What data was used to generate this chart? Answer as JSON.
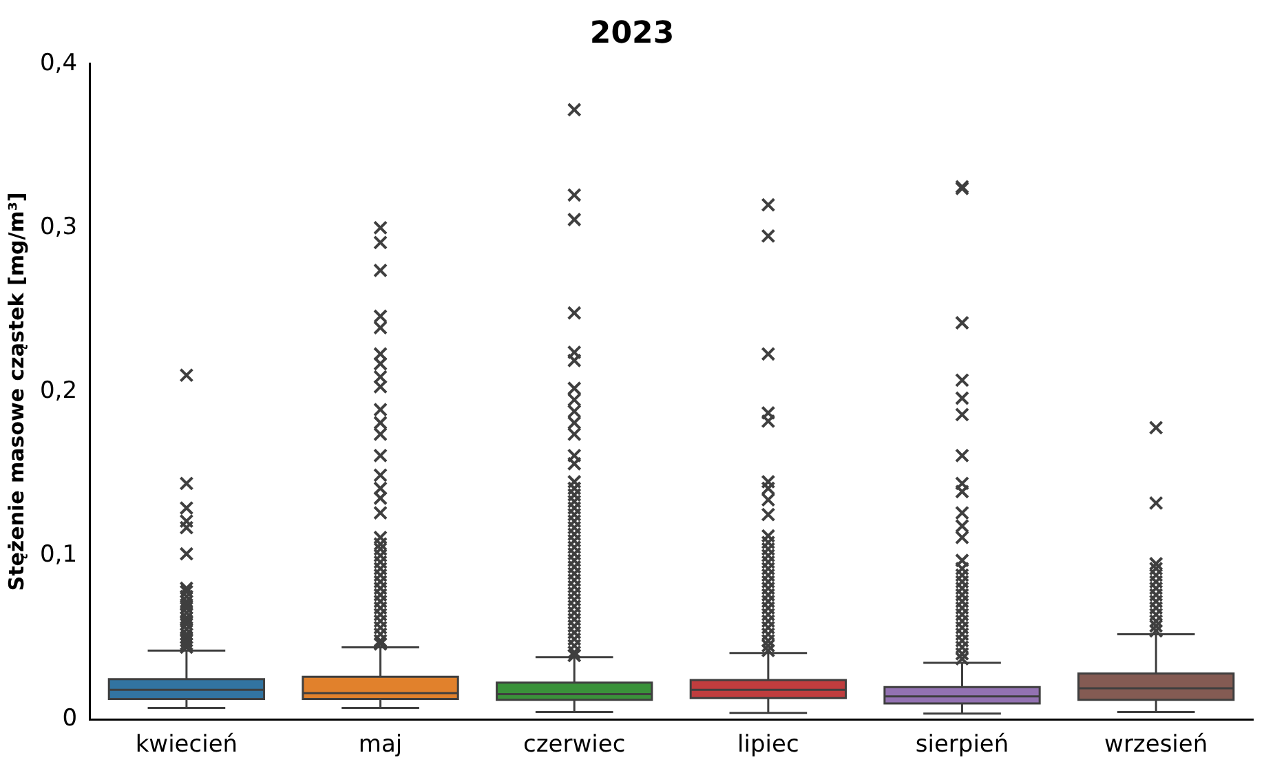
{
  "chart_data": {
    "type": "box",
    "title": "2023",
    "ylabel": "Stężenie masowe cząstek [mg/m³]",
    "categories": [
      "kwiecień",
      "maj",
      "czerwiec",
      "lipiec",
      "sierpień",
      "wrzesień"
    ],
    "colors": [
      "#3274a1",
      "#e1812c",
      "#3a923a",
      "#c03d3e",
      "#9372b2",
      "#845b53"
    ],
    "ylim": [
      0,
      0.4
    ],
    "yticks": [
      {
        "value": 0,
        "label": "0"
      },
      {
        "value": 0.1,
        "label": "0,1"
      },
      {
        "value": 0.2,
        "label": "0,2"
      },
      {
        "value": 0.3,
        "label": "0,3"
      },
      {
        "value": 0.4,
        "label": "0,4"
      }
    ],
    "grid": false,
    "legend": false,
    "marker": "cross",
    "boxes": [
      {
        "low": 0.007,
        "q1": 0.0125,
        "median": 0.018,
        "q3": 0.0245,
        "high": 0.042,
        "outliers": [
          0.21,
          0.144,
          0.129,
          0.121,
          0.117,
          0.101,
          0.08,
          0.078,
          0.075,
          0.072,
          0.07,
          0.068,
          0.065,
          0.062,
          0.06,
          0.058,
          0.055,
          0.052,
          0.05,
          0.048,
          0.046,
          0.044
        ]
      },
      {
        "low": 0.007,
        "q1": 0.0125,
        "median": 0.016,
        "q3": 0.026,
        "high": 0.044,
        "outliers": [
          0.3,
          0.291,
          0.274,
          0.246,
          0.239,
          0.223,
          0.217,
          0.209,
          0.203,
          0.189,
          0.181,
          0.174,
          0.161,
          0.149,
          0.141,
          0.135,
          0.126,
          0.111,
          0.107,
          0.104,
          0.1,
          0.096,
          0.092,
          0.088,
          0.084,
          0.08,
          0.076,
          0.072,
          0.068,
          0.064,
          0.06,
          0.056,
          0.052,
          0.048,
          0.046
        ]
      },
      {
        "low": 0.0045,
        "q1": 0.012,
        "median": 0.0154,
        "q3": 0.0225,
        "high": 0.038,
        "outliers": [
          0.372,
          0.32,
          0.305,
          0.248,
          0.224,
          0.219,
          0.202,
          0.195,
          0.188,
          0.181,
          0.174,
          0.161,
          0.156,
          0.145,
          0.141,
          0.137,
          0.133,
          0.129,
          0.125,
          0.121,
          0.117,
          0.113,
          0.109,
          0.105,
          0.101,
          0.097,
          0.093,
          0.089,
          0.085,
          0.081,
          0.077,
          0.073,
          0.069,
          0.065,
          0.061,
          0.057,
          0.053,
          0.049,
          0.045,
          0.041,
          0.039
        ]
      },
      {
        "low": 0.004,
        "q1": 0.013,
        "median": 0.018,
        "q3": 0.024,
        "high": 0.0405,
        "outliers": [
          0.314,
          0.295,
          0.223,
          0.187,
          0.182,
          0.145,
          0.141,
          0.134,
          0.125,
          0.112,
          0.108,
          0.104,
          0.1,
          0.096,
          0.092,
          0.088,
          0.084,
          0.08,
          0.076,
          0.072,
          0.068,
          0.064,
          0.06,
          0.056,
          0.052,
          0.048,
          0.045,
          0.042
        ]
      },
      {
        "low": 0.0035,
        "q1": 0.0097,
        "median": 0.014,
        "q3": 0.0197,
        "high": 0.0345,
        "outliers": [
          0.325,
          0.324,
          0.242,
          0.207,
          0.196,
          0.186,
          0.161,
          0.144,
          0.139,
          0.126,
          0.118,
          0.111,
          0.097,
          0.092,
          0.088,
          0.084,
          0.08,
          0.076,
          0.072,
          0.068,
          0.064,
          0.06,
          0.056,
          0.052,
          0.048,
          0.044,
          0.04,
          0.037
        ]
      },
      {
        "low": 0.0045,
        "q1": 0.012,
        "median": 0.019,
        "q3": 0.028,
        "high": 0.052,
        "outliers": [
          0.178,
          0.132,
          0.095,
          0.092,
          0.088,
          0.084,
          0.08,
          0.076,
          0.072,
          0.068,
          0.064,
          0.06,
          0.057,
          0.054
        ]
      }
    ]
  }
}
